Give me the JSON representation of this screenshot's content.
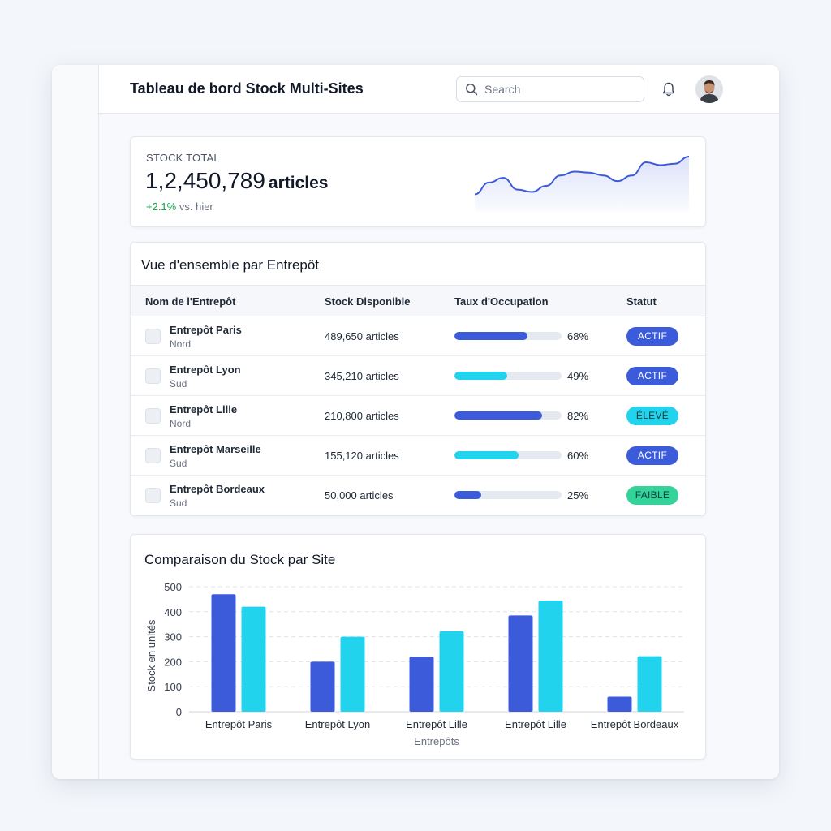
{
  "header": {
    "title": "Tableau de bord Stock Multi-Sites",
    "search_placeholder": "Search",
    "icons": [
      "search-icon",
      "bell-icon",
      "avatar"
    ]
  },
  "kpi": {
    "label": "STOCK TOTAL",
    "value": "1,2,450,789",
    "unit": "articles",
    "delta": "+2.1%",
    "delta_suffix": "vs. hier",
    "sparkline": [
      0.2,
      0.45,
      0.55,
      0.3,
      0.25,
      0.38,
      0.6,
      0.68,
      0.66,
      0.6,
      0.48,
      0.6,
      0.88,
      0.82,
      0.85,
      1.0
    ]
  },
  "table": {
    "title": "Vue d'ensemble par Entrepôt",
    "columns": [
      "Nom de l'Entrepôt",
      "Stock Disponible",
      "Taux d'Occupation",
      "Statut"
    ],
    "rows": [
      {
        "name": "Entrepôt Paris",
        "region": "Nord",
        "stock": "489,650 articles",
        "occupancy": 68,
        "occupancy_label": "68%",
        "status": "ACTIF",
        "bar_color": "#3b5bdb",
        "status_color": "#3b5bdb"
      },
      {
        "name": "Entrepôt Lyon",
        "region": "Sud",
        "stock": "345,210 articles",
        "occupancy": 49,
        "occupancy_label": "49%",
        "status": "ACTIF",
        "bar_color": "#22d3ee",
        "status_color": "#3b5bdb"
      },
      {
        "name": "Entrepôt Lille",
        "region": "Nord",
        "stock": "210,800 articles",
        "occupancy": 82,
        "occupancy_label": "82%",
        "status": "ÉLEVÉ",
        "bar_color": "#3b5bdb",
        "status_color": "#22d3ee"
      },
      {
        "name": "Entrepôt Marseille",
        "region": "Sud",
        "stock": "155,120 articles",
        "occupancy": 60,
        "occupancy_label": "60%",
        "status": "ACTIF",
        "bar_color": "#22d3ee",
        "status_color": "#3b5bdb"
      },
      {
        "name": "Entrepôt Bordeaux",
        "region": "Sud",
        "stock": "50,000 articles",
        "occupancy": 25,
        "occupancy_label": "25%",
        "status": "FAIBLE",
        "bar_color": "#3b5bdb",
        "status_color": "#34d399"
      }
    ]
  },
  "chart_data": {
    "type": "bar",
    "title": "Comparaison du Stock par Site",
    "xlabel": "Entrepôts",
    "ylabel": "Stock en unités",
    "ylim": [
      0,
      500
    ],
    "yticks": [
      0,
      100,
      200,
      300,
      400,
      500
    ],
    "categories": [
      "Entrepôt Paris",
      "Entrepôt Lyon",
      "Entrepôt Lille",
      "Entrepôt Lille",
      "Entrepôt Bordeaux"
    ],
    "series": [
      {
        "values": [
          470,
          200,
          220,
          385,
          60
        ],
        "color": "#3b5bdb"
      },
      {
        "values": [
          420,
          300,
          322,
          445,
          222
        ],
        "color": "#22d3ee"
      }
    ],
    "grid": true
  }
}
